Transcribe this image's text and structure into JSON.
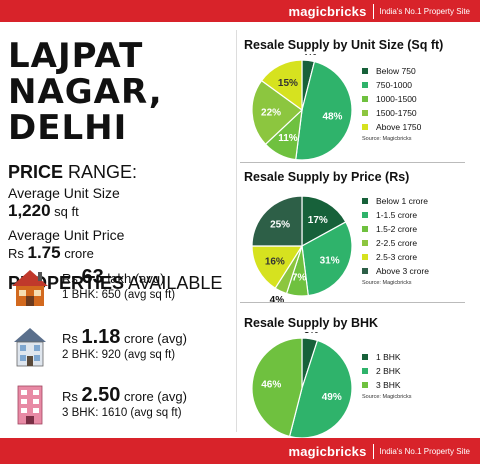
{
  "brand": {
    "logo": "magicbricks",
    "tagline": "India's No.1 Property Site"
  },
  "location": {
    "line1": "LAJPAT NAGAR,",
    "line2": "DELHI"
  },
  "price_range": {
    "heading_bold": "PRICE",
    "heading_rest": " RANGE:",
    "unit_size_label": "Average Unit Size",
    "unit_size_value": "1,220",
    "unit_size_unit": " sq ft",
    "unit_price_label": "Average Unit Price",
    "unit_price_prefix": "Rs ",
    "unit_price_value": "1.75",
    "unit_price_unit": " crore"
  },
  "properties": {
    "heading_bold": "PROPERTIES",
    "heading_rest": " AVAILABLE",
    "items": [
      {
        "prefix": "Rs ",
        "amount": "63",
        "suffix": " lakh (avg)",
        "detail": "1 BHK: 650 (avg sq ft)",
        "icon": "house-icon"
      },
      {
        "prefix": "Rs ",
        "amount": "1.18",
        "suffix": " crore (avg)",
        "detail": "2 BHK: 920 (avg sq ft)",
        "icon": "villa-icon"
      },
      {
        "prefix": "Rs ",
        "amount": "2.50",
        "suffix": " crore (avg)",
        "detail": "3 BHK: 1610 (avg sq ft)",
        "icon": "apartment-icon"
      }
    ]
  },
  "source_label": "Source: Magicbricks",
  "chart_data": [
    {
      "type": "pie",
      "title": "Resale Supply by Unit Size (Sq ft)",
      "categories": [
        "Below 750",
        "750-1000",
        "1000-1500",
        "1500-1750",
        "Above 1750"
      ],
      "values": [
        4,
        48,
        11,
        22,
        15
      ],
      "labels": [
        "4%",
        "48%",
        "11%",
        "22%",
        "15%"
      ],
      "colors": [
        "#17613a",
        "#2fb36b",
        "#6fc13f",
        "#8cc63f",
        "#d6e21f"
      ],
      "legend_position": "right"
    },
    {
      "type": "pie",
      "title": "Resale Supply by Price (Rs)",
      "categories": [
        "Below 1 crore",
        "1-1.5 crore",
        "1.5-2 crore",
        "2-2.5 crore",
        "2.5-3 crore",
        "Above 3 crore"
      ],
      "values": [
        17,
        31,
        7,
        4,
        16,
        25
      ],
      "labels": [
        "17%",
        "31%",
        "7%",
        "4%",
        "16%",
        "25%"
      ],
      "colors": [
        "#17613a",
        "#2fb36b",
        "#6fc13f",
        "#8cc63f",
        "#d6e21f",
        "#2d5f47"
      ],
      "legend_position": "right"
    },
    {
      "type": "pie",
      "title": "Resale Supply by BHK",
      "categories": [
        "1 BHK",
        "2 BHK",
        "3 BHK"
      ],
      "values": [
        5,
        49,
        46
      ],
      "labels": [
        "5%",
        "49%",
        "46%"
      ],
      "colors": [
        "#17613a",
        "#2fb36b",
        "#6fc13f"
      ],
      "legend_position": "right"
    }
  ]
}
